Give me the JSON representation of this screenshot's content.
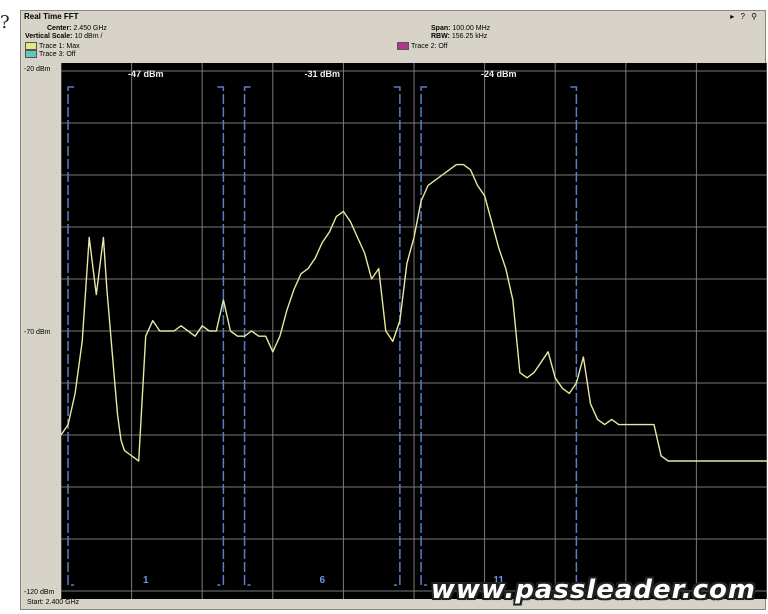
{
  "question_mark": "?",
  "window": {
    "title": "Real Time FFT",
    "icons": "▸ ? ⚲"
  },
  "header": {
    "center_label": "Center:",
    "center_value": "2.450 GHz",
    "vscale_label": "Vertical Scale:",
    "vscale_value": "10 dBm /",
    "span_label": "Span:",
    "span_value": "100.00 MHz",
    "rbw_label": "RBW:",
    "rbw_value": "156.25 kHz"
  },
  "legend": [
    {
      "label": "Trace 1: Max",
      "color": "#e8e87a"
    },
    {
      "label": "Trace 2: Off",
      "color": "#b03a8a"
    },
    {
      "label": "Trace 3: Off",
      "color": "#5ec8c0"
    }
  ],
  "footer": {
    "start": "Start: 2.400 GHz"
  },
  "watermark": "www.passleader.com",
  "chart_data": {
    "type": "line",
    "xlim": [
      2400,
      2500
    ],
    "ylim": [
      -120,
      -20
    ],
    "y_ticks": [
      {
        "value": -20,
        "label": "-20 dBm"
      },
      {
        "value": -70,
        "label": "-70 dBm"
      },
      {
        "value": -120,
        "label": "-120 dBm"
      }
    ],
    "grid": true,
    "trace_color": "#e8e8a0",
    "series": [
      {
        "name": "Trace 1: Max",
        "x": [
          2400,
          2401,
          2402,
          2403,
          2404,
          2405,
          2406,
          2406.5,
          2407,
          2407.5,
          2408,
          2408.5,
          2409,
          2410,
          2411,
          2412,
          2413,
          2414,
          2415,
          2416,
          2417,
          2418,
          2419,
          2420,
          2421,
          2422,
          2423,
          2424,
          2425,
          2426,
          2427,
          2428,
          2429,
          2430,
          2431,
          2432,
          2433,
          2434,
          2435,
          2436,
          2437,
          2438,
          2439,
          2440,
          2441,
          2442,
          2443,
          2444,
          2445,
          2446,
          2447,
          2448,
          2449,
          2450,
          2451,
          2452,
          2453,
          2454,
          2455,
          2456,
          2457,
          2458,
          2459,
          2460,
          2461,
          2462,
          2463,
          2464,
          2465,
          2466,
          2467,
          2468,
          2469,
          2470,
          2471,
          2472,
          2473,
          2474,
          2475,
          2476,
          2477,
          2478,
          2479,
          2480,
          2481,
          2482,
          2483,
          2484,
          2485,
          2486,
          2487,
          2488,
          2489,
          2490,
          2491,
          2492,
          2493,
          2494,
          2495,
          2496,
          2497,
          2498,
          2499,
          2500
        ],
        "y": [
          -90,
          -88,
          -82,
          -72,
          -52,
          -63,
          -52,
          -62,
          -70,
          -78,
          -86,
          -91,
          -93,
          -94,
          -95,
          -71,
          -68,
          -70,
          -70,
          -70,
          -69,
          -70,
          -71,
          -69,
          -70,
          -70,
          -64,
          -70,
          -71,
          -71,
          -70,
          -71,
          -71,
          -74,
          -71,
          -66,
          -62,
          -59,
          -58,
          -56,
          -53,
          -51,
          -48,
          -47,
          -49,
          -52,
          -55,
          -60,
          -58,
          -70,
          -72,
          -68,
          -57,
          -52,
          -45,
          -42,
          -41,
          -40,
          -39,
          -38,
          -38,
          -39,
          -42,
          -44,
          -49,
          -54,
          -58,
          -64,
          -78,
          -79,
          -78,
          -76,
          -74,
          -79,
          -81,
          -82,
          -80,
          -75,
          -84,
          -87,
          -88,
          -87,
          -88,
          -88,
          -88,
          -88,
          -88,
          -88,
          -94,
          -95,
          -95,
          -95,
          -95,
          -95,
          -95,
          -95,
          -95,
          -95,
          -95,
          -95,
          -95,
          -95,
          -95,
          -95
        ]
      }
    ],
    "annotations": [
      {
        "text": "-47 dBm",
        "x": 2412,
        "y": -20
      },
      {
        "text": "-31 dBm",
        "x": 2437,
        "y": -20
      },
      {
        "text": "-24 dBm",
        "x": 2462,
        "y": -20
      }
    ],
    "channels": [
      {
        "label": "1",
        "center": 2412,
        "low": 2401,
        "high": 2423
      },
      {
        "label": "6",
        "center": 2437,
        "low": 2426,
        "high": 2448
      },
      {
        "label": "11",
        "center": 2462,
        "low": 2451,
        "high": 2473
      }
    ]
  }
}
